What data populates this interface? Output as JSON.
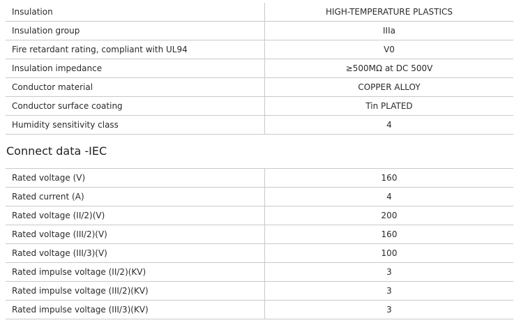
{
  "properties": [
    {
      "label": "Insulation",
      "value": "HIGH-TEMPERATURE PLASTICS"
    },
    {
      "label": "Insulation group",
      "value": "IIIa"
    },
    {
      "label": "Fire retardant rating, compliant with UL94",
      "value": "V0"
    },
    {
      "label": "Insulation impedance",
      "value": "≥500MΩ at DC 500V"
    },
    {
      "label": "Conductor material",
      "value": "COPPER ALLOY"
    },
    {
      "label": "Conductor surface coating",
      "value": "Tin PLATED"
    },
    {
      "label": "Humidity sensitivity class",
      "value": "4"
    }
  ],
  "iec": {
    "title": "Connect data -IEC",
    "rows": [
      {
        "label": "Rated voltage (V)",
        "value": "160"
      },
      {
        "label": "Rated current (A)",
        "value": "4"
      },
      {
        "label": "Rated voltage (II/2)(V)",
        "value": "200"
      },
      {
        "label": "Rated voltage (III/2)(V)",
        "value": "160"
      },
      {
        "label": "Rated voltage (III/3)(V)",
        "value": "100"
      },
      {
        "label": "Rated impulse voltage (II/2)(KV)",
        "value": "3"
      },
      {
        "label": "Rated impulse voltage (III/2)(KV)",
        "value": "3"
      },
      {
        "label": "Rated impulse voltage (III/3)(KV)",
        "value": "3"
      }
    ]
  }
}
